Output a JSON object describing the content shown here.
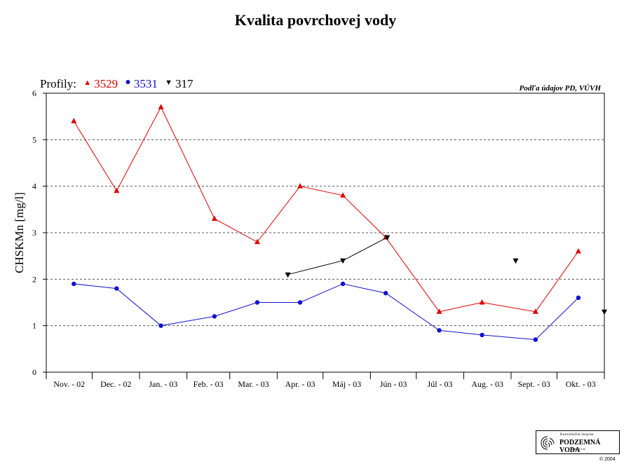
{
  "title": "Kvalita povrchovej vody",
  "legend": {
    "prefix": "Profily:",
    "items": [
      {
        "label": "3529",
        "color": "#e00000",
        "marker": "triangle-up",
        "symbol": "▲"
      },
      {
        "label": "3531",
        "color": "#1010d0",
        "marker": "circle",
        "symbol": "●"
      },
      {
        "label": "317",
        "color": "#000000",
        "marker": "triangle-down",
        "symbol": "▼"
      }
    ]
  },
  "source_note": "Podľa údajov PD, VÚVH",
  "logo": {
    "line1": "Konzultačná skupina",
    "line2": "PODZEMNÁ VODA",
    "line3": "spol. s r.o.",
    "copyright": "© 2004"
  },
  "chart_data": {
    "type": "line",
    "ylabel": "CHSKMn [mg/l]",
    "xlabel": "",
    "ylim": [
      0,
      6
    ],
    "yticks": [
      0,
      1,
      2,
      3,
      4,
      5,
      6
    ],
    "grid": "horizontal dashed",
    "legend_position": "top-left",
    "categories": [
      "Nov. - 02",
      "Dec. - 02",
      "Jan. - 03",
      "Feb. - 03",
      "Mar. - 03",
      "Apr. - 03",
      "Máj - 03",
      "Jún - 03",
      "Júl - 03",
      "Aug. - 03",
      "Sept. - 03",
      "Okt. - 03"
    ],
    "series": [
      {
        "name": "3529",
        "color": "#e00000",
        "marker": "triangle-up",
        "x": [
          "2002-11-19",
          "2002-12-17",
          "2003-01-15",
          "2003-02-19",
          "2003-03-19",
          "2003-04-16",
          "2003-05-14",
          "2003-06-11",
          "2003-07-16",
          "2003-08-13",
          "2003-09-17",
          "2003-10-15"
        ],
        "values": [
          5.4,
          3.9,
          5.7,
          3.3,
          2.8,
          4.0,
          3.8,
          2.9,
          1.3,
          1.5,
          1.3,
          2.6
        ],
        "connected": true
      },
      {
        "name": "3531",
        "color": "#1010d0",
        "marker": "circle",
        "x": [
          "2002-11-19",
          "2002-12-17",
          "2003-01-15",
          "2003-02-19",
          "2003-03-19",
          "2003-04-16",
          "2003-05-14",
          "2003-06-11",
          "2003-07-16",
          "2003-08-13",
          "2003-09-17",
          "2003-10-15"
        ],
        "values": [
          1.9,
          1.8,
          1.0,
          1.2,
          1.5,
          1.5,
          1.9,
          1.7,
          0.9,
          0.8,
          0.7,
          1.6
        ],
        "connected": true
      },
      {
        "name": "317",
        "color": "#000000",
        "marker": "triangle-down",
        "x": [
          "2003-04-08",
          "2003-05-14",
          "2003-06-12",
          "2003-09-04",
          "2003-11-01"
        ],
        "values": [
          2.1,
          2.4,
          2.9,
          2.4,
          1.3
        ],
        "connected_segments": [
          [
            0,
            1,
            2
          ]
        ]
      }
    ]
  }
}
